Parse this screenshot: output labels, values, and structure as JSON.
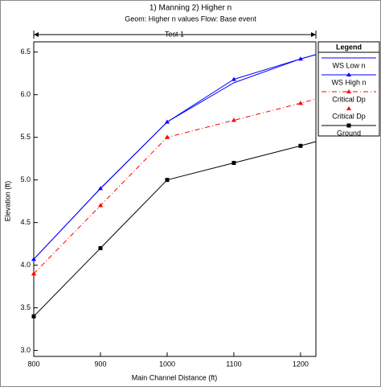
{
  "chart_data": {
    "type": "line",
    "title": "1) Manning    2) Higher n",
    "subtitle": "Geom: Higher n values    Flow: Base event",
    "bracket_label": "Test 1",
    "x_label": "Main Channel Distance (ft)",
    "y_label": "Elevation (ft)",
    "legend_title": "Legend",
    "legend_position": "right",
    "x": [
      800,
      900,
      1000,
      1100,
      1200,
      1223
    ],
    "xlim": [
      800,
      1223
    ],
    "xticks": [
      800,
      900,
      1000,
      1100,
      1200
    ],
    "ylim": [
      2.93,
      6.62
    ],
    "yticks": [
      {
        "value": 3,
        "label": "3.0"
      },
      3.5,
      {
        "value": 4,
        "label": "4.0"
      },
      4.5,
      {
        "value": 5,
        "label": "5.0"
      },
      5.5,
      {
        "value": 6,
        "label": "6.0"
      },
      6.5
    ],
    "grid": false,
    "series": [
      {
        "name": "WS Low n",
        "color": "#0000ff",
        "marker": "none",
        "line_style": "solid",
        "values": [
          4.07,
          4.9,
          5.68,
          6.14,
          6.42,
          6.47
        ]
      },
      {
        "name": "WS High n",
        "color": "#0000ff",
        "marker": "triangle",
        "line_style": "solid",
        "values": [
          4.07,
          4.9,
          5.68,
          6.18,
          6.42,
          6.47
        ]
      },
      {
        "name": "Critical Dp",
        "color": "#ff0000",
        "marker": "triangle",
        "line_style": "dashdot",
        "values": [
          3.9,
          4.7,
          5.5,
          5.7,
          5.9,
          5.95
        ]
      },
      {
        "name": "Critical Dp",
        "color": "#ff0000",
        "marker": "triangle",
        "line_style": "none",
        "values": [
          3.9,
          4.7,
          5.5,
          5.7,
          5.9,
          null
        ]
      },
      {
        "name": "Ground",
        "color": "#000000",
        "marker": "square",
        "line_style": "solid",
        "values": [
          3.4,
          4.2,
          5.0,
          5.2,
          5.4,
          5.45
        ]
      }
    ]
  }
}
